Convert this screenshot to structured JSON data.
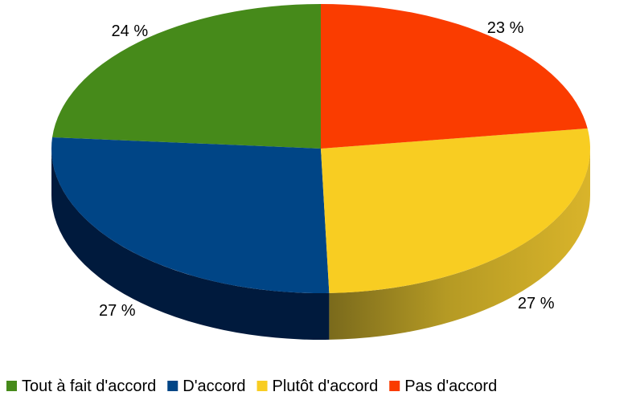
{
  "chart_data": {
    "type": "pie",
    "style": "3d",
    "categories": [
      "Tout à fait d'accord",
      "D'accord",
      "Plutôt d'accord",
      "Pas d'accord"
    ],
    "values": [
      24,
      27,
      27,
      23
    ],
    "data_labels": [
      "24 %",
      "27 %",
      "27 %",
      "23 %"
    ],
    "colors": [
      "#468a1a",
      "#004586",
      "#f8cd22",
      "#fa3c00"
    ],
    "legend_position": "bottom"
  }
}
